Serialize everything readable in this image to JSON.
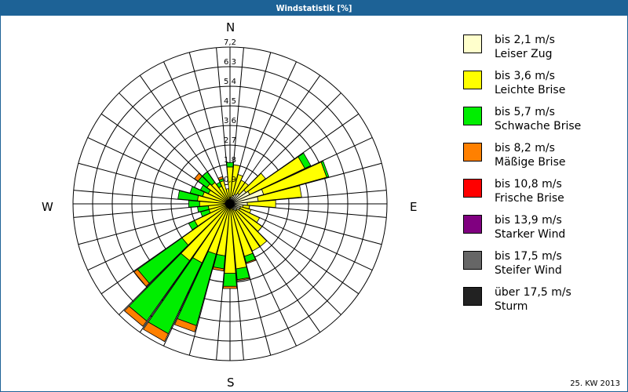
{
  "header": {
    "title": "Windstatistik [%]"
  },
  "footer": {
    "period": "25. KW 2013"
  },
  "compass": {
    "n": "N",
    "e": "E",
    "s": "S",
    "w": "W"
  },
  "legend": [
    {
      "speed": "bis 2,1 m/s",
      "name": "Leiser Zug",
      "color": "#ffffcc"
    },
    {
      "speed": "bis 3,6 m/s",
      "name": "Leichte Brise",
      "color": "#ffff00"
    },
    {
      "speed": "bis 5,7 m/s",
      "name": "Schwache Brise",
      "color": "#00ee00"
    },
    {
      "speed": "bis 8,2 m/s",
      "name": "Mäßige Brise",
      "color": "#ff8000"
    },
    {
      "speed": "bis 10,8 m/s",
      "name": "Frische Brise",
      "color": "#ff0000"
    },
    {
      "speed": "bis 13,9 m/s",
      "name": "Starker Wind",
      "color": "#800080"
    },
    {
      "speed": "bis 17,5 m/s",
      "name": "Steifer Wind",
      "color": "#666666"
    },
    {
      "speed": "über 17,5 m/s",
      "name": "Sturm",
      "color": "#222222"
    }
  ],
  "chart_data": {
    "type": "windrose",
    "title": "Windstatistik [%]",
    "subtitle": "25. KW 2013",
    "radial_unit": "%",
    "radial_ticks": [
      "0,9",
      "1,8",
      "2,7",
      "3,6",
      "4,5",
      "5,4",
      "6,3",
      "7,2"
    ],
    "radial_max": 7.2,
    "sector_width_deg": 10,
    "directions_deg": [
      0,
      10,
      20,
      30,
      40,
      50,
      60,
      70,
      80,
      90,
      100,
      110,
      120,
      130,
      140,
      150,
      160,
      170,
      180,
      190,
      200,
      210,
      220,
      230,
      240,
      250,
      260,
      270,
      280,
      290,
      300,
      310,
      320,
      330,
      340,
      350
    ],
    "series": [
      {
        "name": "bis 2,1 m/s Leiser Zug",
        "values": [
          0.3,
          0.3,
          0.4,
          0.5,
          0.6,
          0.9,
          1.0,
          1.6,
          1.3,
          0.8,
          0.6,
          0.5,
          0.5,
          0.4,
          0.4,
          0.3,
          0.2,
          0.2,
          0.2,
          0.2,
          0.2,
          0.2,
          0.2,
          0.2,
          0.2,
          0.2,
          0.2,
          0.2,
          0.2,
          0.2,
          0.2,
          0.2,
          0.2,
          0.2,
          0.2,
          0.2
        ]
      },
      {
        "name": "bis 3,6 m/s Leichte Brise",
        "values": [
          1.4,
          1.5,
          1.0,
          0.7,
          0.6,
          1.1,
          2.8,
          3.0,
          2.0,
          1.3,
          0.3,
          0.5,
          1.0,
          1.4,
          2.0,
          2.1,
          2.3,
          2.8,
          3.0,
          2.2,
          2.2,
          2.8,
          3.0,
          2.5,
          1.6,
          0.8,
          0.8,
          1.2,
          1.3,
          1.1,
          0.9,
          1.1,
          1.0,
          0.7,
          0.9,
          0.5
        ]
      },
      {
        "name": "bis 5,7 m/s Schwache Brise",
        "values": [
          0.2,
          0.0,
          0.0,
          0.0,
          0.0,
          0.0,
          0.3,
          0.1,
          0.0,
          0.0,
          0.0,
          0.0,
          0.0,
          0.0,
          0.0,
          0.0,
          0.3,
          0.5,
          0.6,
          0.6,
          3.4,
          3.6,
          3.4,
          2.5,
          0.3,
          0.4,
          0.5,
          0.5,
          0.9,
          0.6,
          0.4,
          0.5,
          0.6,
          0.2,
          0.1,
          0.0
        ]
      },
      {
        "name": "bis 8,2 m/s Mäßige Brise",
        "values": [
          0,
          0,
          0,
          0,
          0,
          0,
          0,
          0,
          0,
          0,
          0,
          0,
          0,
          0,
          0,
          0,
          0.05,
          0.05,
          0.1,
          0.1,
          0.3,
          0.4,
          0.3,
          0.2,
          0,
          0,
          0,
          0,
          0,
          0,
          0,
          0.2,
          0,
          0,
          0.1,
          0
        ]
      },
      {
        "name": "bis 10,8 m/s Frische Brise",
        "values": [
          0,
          0,
          0,
          0,
          0,
          0,
          0,
          0,
          0,
          0,
          0,
          0,
          0,
          0,
          0,
          0,
          0,
          0,
          0,
          0,
          0,
          0,
          0,
          0,
          0,
          0,
          0,
          0,
          0,
          0,
          0,
          0,
          0,
          0,
          0,
          0
        ]
      },
      {
        "name": "bis 13,9 m/s Starker Wind",
        "values": [
          0,
          0,
          0,
          0,
          0,
          0,
          0,
          0,
          0,
          0,
          0,
          0,
          0,
          0,
          0,
          0,
          0,
          0,
          0,
          0,
          0,
          0,
          0,
          0,
          0,
          0,
          0,
          0,
          0,
          0,
          0,
          0,
          0,
          0,
          0,
          0
        ]
      },
      {
        "name": "bis 17,5 m/s Steifer Wind",
        "values": [
          0,
          0,
          0,
          0,
          0,
          0,
          0,
          0,
          0,
          0,
          0,
          0,
          0,
          0,
          0,
          0,
          0,
          0,
          0,
          0,
          0,
          0,
          0,
          0,
          0,
          0,
          0,
          0,
          0,
          0,
          0,
          0,
          0,
          0,
          0,
          0
        ]
      },
      {
        "name": "über 17,5 m/s Sturm",
        "values": [
          0,
          0,
          0,
          0,
          0,
          0,
          0,
          0,
          0,
          0,
          0,
          0,
          0,
          0,
          0,
          0,
          0,
          0,
          0,
          0,
          0,
          0,
          0,
          0,
          0,
          0,
          0,
          0,
          0,
          0,
          0,
          0,
          0,
          0,
          0,
          0
        ]
      }
    ],
    "legend_position": "right",
    "grid": true
  }
}
